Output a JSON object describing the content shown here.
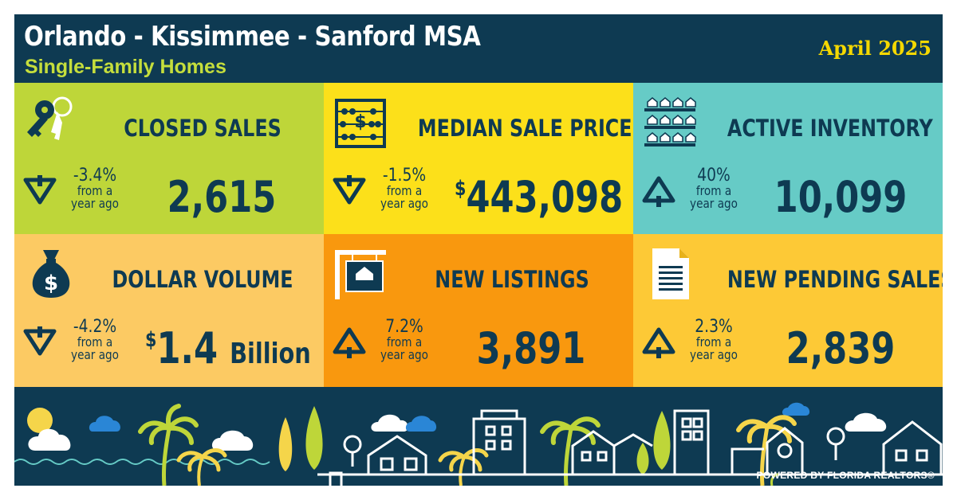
{
  "header": {
    "title": "Orlando - Kissimmee - Sanford MSA",
    "subtitle": "Single-Family Homes",
    "period": "April 2025"
  },
  "tiles": [
    {
      "label": "CLOSED SALES",
      "icon": "keys-icon",
      "direction": "down",
      "change": "-3.4%",
      "change_line1": "from a",
      "change_line2": "year ago",
      "currency": "",
      "value": "2,615",
      "unit": "",
      "color": "#bed639"
    },
    {
      "label": "MEDIAN SALE PRICE",
      "icon": "abacus-icon",
      "direction": "down",
      "change": "-1.5%",
      "change_line1": "from a",
      "change_line2": "year ago",
      "currency": "$",
      "value": "443,098",
      "unit": "",
      "color": "#fce01a"
    },
    {
      "label": "ACTIVE INVENTORY",
      "icon": "houses-shelf-icon",
      "direction": "up",
      "change": "40%",
      "change_line1": "from a",
      "change_line2": "year ago",
      "currency": "",
      "value": "10,099",
      "unit": "",
      "color": "#66cbc6"
    },
    {
      "label": "DOLLAR VOLUME",
      "icon": "money-bag-icon",
      "direction": "down",
      "change": "-4.2%",
      "change_line1": "from a",
      "change_line2": "year ago",
      "currency": "$",
      "value": "1.4",
      "unit": "Billion",
      "color": "#fcca63"
    },
    {
      "label": "NEW LISTINGS",
      "icon": "for-sale-sign-icon",
      "direction": "up",
      "change": "7.2%",
      "change_line1": "from a",
      "change_line2": "year ago",
      "currency": "",
      "value": "3,891",
      "unit": "",
      "color": "#f9980e"
    },
    {
      "label": "NEW PENDING SALES",
      "icon": "document-icon",
      "direction": "up",
      "change": "2.3%",
      "change_line1": "from a",
      "change_line2": "year ago",
      "currency": "",
      "value": "2,839",
      "unit": "",
      "color": "#fdc936"
    }
  ],
  "footer": {
    "powered_by": "POWERED BY FLORIDA REALTORS®"
  },
  "colors": {
    "navy": "#0e3a52",
    "accent_yellow": "#f5d800",
    "subtitle_green": "#c5de3c",
    "cloud_blue": "#2a86d6"
  }
}
